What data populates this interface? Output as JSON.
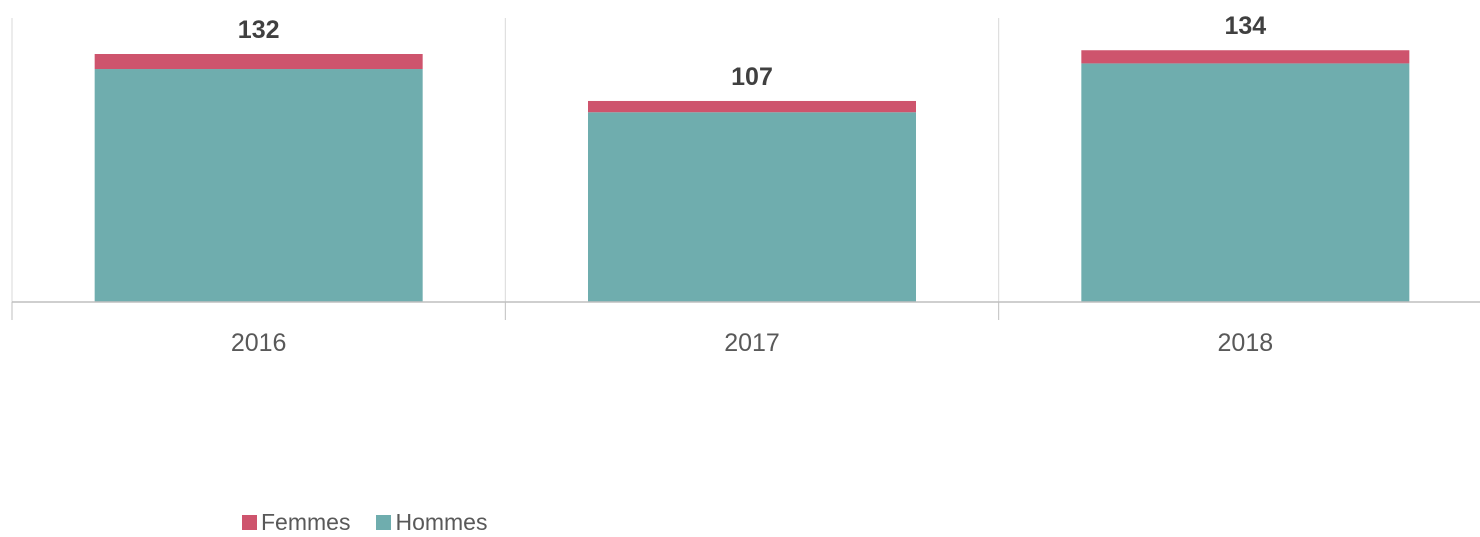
{
  "chart_data": {
    "type": "bar",
    "stacked": true,
    "categories": [
      "2016",
      "2017",
      "2018"
    ],
    "series": [
      {
        "name": "Hommes",
        "values": [
          124,
          101,
          127
        ],
        "color": "#6fadae"
      },
      {
        "name": "Femmes",
        "values": [
          8,
          6,
          7
        ],
        "color": "#ce546d"
      }
    ],
    "totals": [
      "132",
      "107",
      "134"
    ],
    "title": "",
    "xlabel": "",
    "ylabel": "",
    "ylim": [
      0,
      150
    ],
    "grid": "vertical separators between categories",
    "legend_position": "bottom-left"
  },
  "legend": {
    "items": [
      {
        "label": "Femmes",
        "color": "#ce546d"
      },
      {
        "label": "Hommes",
        "color": "#6fadae"
      }
    ]
  },
  "colors": {
    "axis": "#bfbfbf",
    "grid": "#d9d9d9"
  }
}
